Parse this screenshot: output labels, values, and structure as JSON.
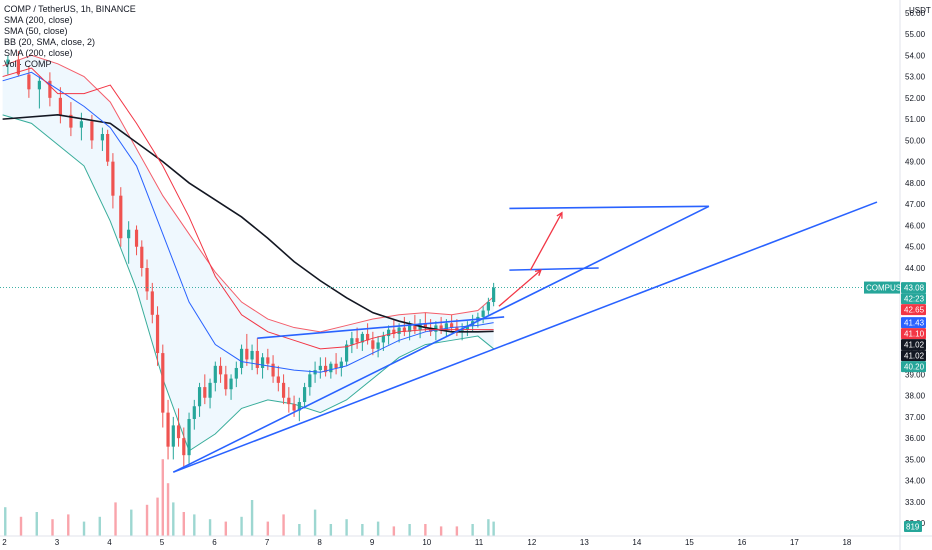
{
  "chart_data": {
    "type": "candlestick",
    "title": "COMP / TetherUS, 1h, BINANCE",
    "indicators": [
      "SMA (200, close)",
      "SMA (50, close)",
      "BB (20, SMA, close, 2)",
      "SMA (200, close)",
      "Vol · COMP"
    ],
    "currency": "USDT",
    "ylim": [
      31.4,
      56.6
    ],
    "xlim": [
      1.9,
      19.0
    ],
    "y_ticks": [
      32,
      33,
      34,
      35,
      36,
      37,
      38,
      39,
      40,
      41,
      42,
      43,
      44,
      45,
      46,
      47,
      48,
      49,
      50,
      51,
      52,
      53,
      54,
      55,
      56
    ],
    "y_tick_labels": [
      "32.00",
      "33.00",
      "34.00",
      "35.00",
      "36.00",
      "37.00",
      "38.00",
      "39.00",
      "40.00",
      "41.00",
      "42.00",
      "43.00",
      "44.00",
      "45.00",
      "46.00",
      "47.00",
      "48.00",
      "49.00",
      "50.00",
      "51.00",
      "52.00",
      "53.00",
      "54.00",
      "55.00",
      "56.00"
    ],
    "x_ticks": [
      2,
      3,
      4,
      5,
      6,
      7,
      8,
      9,
      10,
      11,
      12,
      13,
      14,
      15,
      16,
      17,
      18
    ],
    "x_tick_labels": [
      "2",
      "3",
      "4",
      "5",
      "6",
      "7",
      "8",
      "9",
      "10",
      "11",
      "12",
      "13",
      "14",
      "15",
      "16",
      "17",
      "18"
    ],
    "last_price_label": "COMPUSDT",
    "price_badges": [
      {
        "value": 43.08,
        "text": "43.08",
        "color": "#26a69a"
      },
      {
        "value": 42.65,
        "text": "42:23",
        "color": "#26a69a"
      },
      {
        "value": 42.65,
        "text": "42.65",
        "color": "#f23645"
      },
      {
        "value": 41.43,
        "text": "41.43",
        "color": "#2962ff"
      },
      {
        "value": 41.1,
        "text": "41.10",
        "color": "#f23645"
      },
      {
        "value": 41.02,
        "text": "41.02",
        "color": "#131722"
      },
      {
        "value": 41.02,
        "text": "41.02",
        "color": "#131722"
      },
      {
        "value": 40.2,
        "text": "40.20",
        "color": "#26a69a"
      }
    ],
    "volume_badge": "819",
    "candles": [
      [
        2.05,
        53.6,
        54.0,
        53.1,
        53.8
      ],
      [
        2.25,
        53.8,
        54.2,
        53.0,
        53.1
      ],
      [
        2.45,
        53.1,
        53.5,
        52.0,
        52.4
      ],
      [
        2.65,
        52.4,
        53.0,
        51.5,
        52.8
      ],
      [
        2.85,
        52.8,
        53.2,
        51.6,
        52.0
      ],
      [
        3.05,
        52.0,
        52.5,
        50.8,
        51.2
      ],
      [
        3.25,
        51.2,
        51.8,
        50.2,
        50.6
      ],
      [
        3.45,
        50.6,
        51.3,
        50.0,
        50.9
      ],
      [
        3.65,
        50.9,
        51.2,
        49.6,
        50.0
      ],
      [
        3.85,
        50.0,
        50.6,
        49.5,
        50.3
      ],
      [
        3.95,
        50.3,
        50.5,
        48.8,
        49.0
      ],
      [
        4.05,
        49.0,
        49.4,
        46.8,
        47.4
      ],
      [
        4.2,
        47.4,
        47.8,
        45.0,
        45.4
      ],
      [
        4.35,
        45.4,
        46.2,
        44.2,
        45.8
      ],
      [
        4.5,
        45.8,
        46.0,
        44.6,
        45.0
      ],
      [
        4.6,
        45.0,
        45.3,
        43.6,
        44.0
      ],
      [
        4.7,
        44.0,
        44.4,
        42.5,
        42.9
      ],
      [
        4.8,
        42.9,
        43.3,
        41.4,
        41.8
      ],
      [
        4.9,
        41.8,
        42.2,
        39.4,
        40.0
      ],
      [
        5.0,
        40.0,
        40.4,
        36.5,
        37.2
      ],
      [
        5.1,
        37.2,
        37.8,
        35.0,
        35.6
      ],
      [
        5.2,
        35.6,
        37.0,
        35.0,
        36.6
      ],
      [
        5.3,
        36.6,
        37.4,
        35.6,
        36.0
      ],
      [
        5.4,
        36.0,
        36.5,
        34.6,
        35.2
      ],
      [
        5.5,
        35.2,
        37.2,
        34.8,
        36.9
      ],
      [
        5.6,
        36.9,
        37.8,
        36.4,
        37.5
      ],
      [
        5.7,
        37.5,
        38.6,
        37.0,
        38.4
      ],
      [
        5.8,
        38.4,
        39.0,
        37.6,
        37.9
      ],
      [
        5.9,
        37.9,
        38.8,
        37.4,
        38.6
      ],
      [
        6.0,
        38.6,
        39.6,
        38.2,
        39.4
      ],
      [
        6.1,
        39.4,
        39.8,
        38.6,
        39.0
      ],
      [
        6.2,
        39.0,
        39.4,
        38.0,
        38.3
      ],
      [
        6.3,
        38.3,
        39.0,
        37.8,
        38.8
      ],
      [
        6.4,
        38.8,
        39.6,
        38.4,
        39.3
      ],
      [
        6.5,
        39.3,
        40.4,
        39.0,
        40.2
      ],
      [
        6.6,
        40.2,
        40.9,
        39.4,
        39.7
      ],
      [
        6.7,
        39.7,
        40.4,
        39.2,
        40.1
      ],
      [
        6.8,
        40.1,
        40.7,
        39.0,
        39.3
      ],
      [
        6.9,
        39.3,
        40.0,
        38.8,
        39.8
      ],
      [
        7.0,
        39.8,
        40.2,
        39.2,
        39.5
      ],
      [
        7.1,
        39.5,
        39.9,
        38.6,
        38.9
      ],
      [
        7.2,
        38.9,
        39.4,
        38.2,
        38.6
      ],
      [
        7.3,
        38.6,
        39.0,
        37.6,
        37.9
      ],
      [
        7.4,
        37.9,
        38.4,
        37.2,
        37.6
      ],
      [
        7.5,
        37.6,
        38.0,
        37.0,
        37.3
      ],
      [
        7.6,
        37.3,
        37.9,
        36.8,
        37.7
      ],
      [
        7.7,
        37.7,
        38.6,
        37.4,
        38.4
      ],
      [
        7.8,
        38.4,
        39.2,
        38.0,
        39.0
      ],
      [
        7.9,
        39.0,
        39.6,
        38.6,
        39.2
      ],
      [
        8.0,
        39.2,
        39.8,
        38.8,
        39.4
      ],
      [
        8.1,
        39.4,
        39.8,
        38.9,
        39.1
      ],
      [
        8.2,
        39.1,
        39.6,
        38.8,
        39.5
      ],
      [
        8.3,
        39.5,
        40.0,
        39.0,
        39.3
      ],
      [
        8.4,
        39.3,
        39.8,
        38.9,
        39.6
      ],
      [
        8.5,
        39.6,
        40.6,
        39.4,
        40.4
      ],
      [
        8.6,
        40.4,
        41.0,
        40.0,
        40.7
      ],
      [
        8.7,
        40.7,
        41.2,
        40.2,
        40.5
      ],
      [
        8.8,
        40.5,
        41.0,
        40.1,
        40.9
      ],
      [
        8.9,
        40.9,
        41.4,
        40.4,
        40.6
      ],
      [
        9.0,
        40.6,
        41.0,
        39.9,
        40.2
      ],
      [
        9.1,
        40.2,
        40.8,
        39.8,
        40.5
      ],
      [
        9.2,
        40.5,
        41.0,
        40.1,
        40.8
      ],
      [
        9.3,
        40.8,
        41.3,
        40.4,
        41.1
      ],
      [
        9.4,
        41.1,
        41.6,
        40.7,
        40.9
      ],
      [
        9.5,
        40.9,
        41.4,
        40.5,
        41.2
      ],
      [
        9.6,
        41.2,
        41.7,
        40.8,
        41.0
      ],
      [
        9.7,
        41.0,
        41.5,
        40.6,
        41.3
      ],
      [
        9.8,
        41.3,
        41.8,
        40.9,
        41.1
      ],
      [
        9.9,
        41.1,
        41.6,
        40.7,
        41.4
      ],
      [
        10.0,
        41.4,
        41.9,
        41.0,
        41.2
      ],
      [
        10.1,
        41.2,
        41.6,
        40.8,
        41.0
      ],
      [
        10.2,
        41.0,
        41.5,
        40.6,
        41.3
      ],
      [
        10.3,
        41.3,
        41.7,
        40.9,
        41.1
      ],
      [
        10.4,
        41.1,
        41.6,
        40.8,
        41.4
      ],
      [
        10.5,
        41.4,
        41.8,
        41.0,
        41.2
      ],
      [
        10.6,
        41.2,
        41.6,
        40.8,
        41.0
      ],
      [
        10.7,
        41.0,
        41.4,
        40.6,
        41.1
      ],
      [
        10.8,
        41.1,
        41.5,
        40.8,
        41.3
      ],
      [
        10.9,
        41.3,
        41.8,
        41.0,
        41.5
      ],
      [
        11.0,
        41.5,
        41.9,
        41.2,
        41.7
      ],
      [
        11.1,
        41.7,
        42.2,
        41.4,
        42.0
      ],
      [
        11.2,
        42.0,
        42.6,
        41.8,
        42.4
      ],
      [
        11.3,
        42.4,
        43.3,
        42.2,
        43.08
      ]
    ],
    "sma200": [
      [
        1.95,
        51.0
      ],
      [
        3.0,
        51.2
      ],
      [
        4.0,
        50.8
      ],
      [
        5.0,
        49.0
      ],
      [
        5.5,
        48.0
      ],
      [
        6.0,
        47.2
      ],
      [
        6.5,
        46.4
      ],
      [
        7.0,
        45.4
      ],
      [
        7.5,
        44.3
      ],
      [
        8.0,
        43.4
      ],
      [
        8.5,
        42.6
      ],
      [
        9.0,
        41.9
      ],
      [
        9.5,
        41.5
      ],
      [
        10.0,
        41.2
      ],
      [
        10.5,
        41.0
      ],
      [
        11.0,
        41.0
      ],
      [
        11.3,
        41.02
      ]
    ],
    "bb_upper": [
      [
        1.95,
        53.5
      ],
      [
        2.5,
        54.0
      ],
      [
        3.0,
        53.6
      ],
      [
        3.5,
        53.0
      ],
      [
        4.0,
        51.8
      ],
      [
        4.5,
        49.6
      ],
      [
        5.0,
        47.4
      ],
      [
        5.5,
        45.6
      ],
      [
        6.0,
        43.8
      ],
      [
        6.5,
        42.4
      ],
      [
        7.0,
        41.6
      ],
      [
        7.5,
        41.2
      ],
      [
        8.0,
        41.0
      ],
      [
        8.5,
        41.3
      ],
      [
        9.0,
        41.6
      ],
      [
        9.5,
        41.8
      ],
      [
        10.0,
        41.9
      ],
      [
        10.5,
        41.8
      ],
      [
        11.0,
        42.0
      ],
      [
        11.3,
        42.65
      ]
    ],
    "bb_lower": [
      [
        1.95,
        51.2
      ],
      [
        2.5,
        50.8
      ],
      [
        3.0,
        49.8
      ],
      [
        3.5,
        48.8
      ],
      [
        4.0,
        46.2
      ],
      [
        4.5,
        43.0
      ],
      [
        5.0,
        38.8
      ],
      [
        5.5,
        35.4
      ],
      [
        6.0,
        36.2
      ],
      [
        6.5,
        37.4
      ],
      [
        7.0,
        37.8
      ],
      [
        7.5,
        37.6
      ],
      [
        8.0,
        37.2
      ],
      [
        8.5,
        37.8
      ],
      [
        9.0,
        38.8
      ],
      [
        9.5,
        39.8
      ],
      [
        10.0,
        40.4
      ],
      [
        10.5,
        40.6
      ],
      [
        11.0,
        40.8
      ],
      [
        11.3,
        40.2
      ]
    ],
    "sma50": [
      [
        1.95,
        52.8
      ],
      [
        2.5,
        53.2
      ],
      [
        3.0,
        52.4
      ],
      [
        3.5,
        51.6
      ],
      [
        4.0,
        50.6
      ],
      [
        4.5,
        48.8
      ],
      [
        5.0,
        45.6
      ],
      [
        5.5,
        42.4
      ],
      [
        6.0,
        40.4
      ],
      [
        6.5,
        39.6
      ],
      [
        7.0,
        39.4
      ],
      [
        7.5,
        39.2
      ],
      [
        8.0,
        39.1
      ],
      [
        8.5,
        39.4
      ],
      [
        9.0,
        40.0
      ],
      [
        9.5,
        40.6
      ],
      [
        10.0,
        41.0
      ],
      [
        10.5,
        41.2
      ],
      [
        11.0,
        41.3
      ],
      [
        11.3,
        41.43
      ]
    ],
    "sma200b": [
      [
        1.95,
        53.0
      ],
      [
        2.5,
        53.4
      ],
      [
        3.0,
        52.2
      ],
      [
        3.5,
        52.2
      ],
      [
        4.0,
        52.6
      ],
      [
        4.5,
        50.8
      ],
      [
        5.0,
        48.8
      ],
      [
        5.5,
        46.4
      ],
      [
        6.0,
        43.6
      ],
      [
        6.5,
        41.8
      ],
      [
        7.0,
        41.0
      ],
      [
        7.5,
        40.6
      ],
      [
        8.0,
        40.2
      ],
      [
        8.5,
        40.3
      ],
      [
        9.0,
        40.7
      ],
      [
        9.5,
        41.0
      ],
      [
        10.0,
        41.1
      ],
      [
        10.5,
        41.1
      ],
      [
        11.0,
        41.1
      ],
      [
        11.3,
        41.1
      ]
    ],
    "volume": [
      [
        2.0,
        1.2
      ],
      [
        2.3,
        0.8
      ],
      [
        2.6,
        1.0
      ],
      [
        2.9,
        0.7
      ],
      [
        3.2,
        0.9
      ],
      [
        3.5,
        0.6
      ],
      [
        3.8,
        0.8
      ],
      [
        4.1,
        1.4
      ],
      [
        4.4,
        1.1
      ],
      [
        4.7,
        1.3
      ],
      [
        4.9,
        1.6
      ],
      [
        5.0,
        3.2
      ],
      [
        5.1,
        2.2
      ],
      [
        5.2,
        1.4
      ],
      [
        5.4,
        1.0
      ],
      [
        5.6,
        0.9
      ],
      [
        5.9,
        0.7
      ],
      [
        6.2,
        0.6
      ],
      [
        6.5,
        0.8
      ],
      [
        6.7,
        1.5
      ],
      [
        7.0,
        0.6
      ],
      [
        7.3,
        0.9
      ],
      [
        7.6,
        0.5
      ],
      [
        7.9,
        1.1
      ],
      [
        8.2,
        0.5
      ],
      [
        8.5,
        0.7
      ],
      [
        8.8,
        0.5
      ],
      [
        9.1,
        0.6
      ],
      [
        9.4,
        0.4
      ],
      [
        9.7,
        0.5
      ],
      [
        10.0,
        0.5
      ],
      [
        10.3,
        0.4
      ],
      [
        10.6,
        0.4
      ],
      [
        10.9,
        0.5
      ],
      [
        11.2,
        0.7
      ],
      [
        11.3,
        0.6
      ]
    ],
    "trendlines": [
      [
        [
          5.2,
          34.4
        ],
        [
          18.6,
          47.1
        ]
      ],
      [
        [
          5.2,
          34.4
        ],
        [
          15.4,
          46.9
        ]
      ],
      [
        [
          6.8,
          40.7
        ],
        [
          11.5,
          41.7
        ]
      ],
      [
        [
          11.6,
          46.8
        ],
        [
          15.4,
          46.9
        ]
      ],
      [
        [
          11.6,
          43.9
        ],
        [
          13.3,
          44.0
        ]
      ]
    ],
    "arrows": [
      [
        [
          11.4,
          42.2
        ],
        [
          12.2,
          43.9
        ]
      ],
      [
        [
          12.0,
          43.9
        ],
        [
          12.6,
          46.6
        ]
      ]
    ]
  }
}
